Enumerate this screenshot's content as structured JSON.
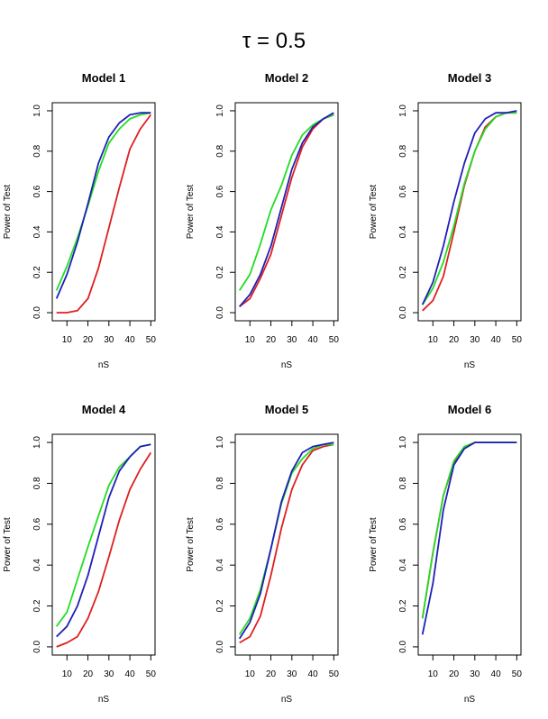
{
  "figure": {
    "title": "τ = 0.5"
  },
  "chart_data": [
    {
      "type": "line",
      "title": "Model 1",
      "xlabel": "nS",
      "ylabel": "Power of Test",
      "xlim": [
        3,
        52
      ],
      "ylim": [
        -0.04,
        1.04
      ],
      "xticks": [
        10,
        20,
        30,
        40,
        50
      ],
      "yticks": [
        0.0,
        0.2,
        0.4,
        0.6,
        0.8,
        1.0
      ],
      "x": [
        5,
        10,
        15,
        20,
        25,
        30,
        35,
        40,
        45,
        50
      ],
      "series": [
        {
          "name": "red",
          "color": "#df1f1f",
          "values": [
            0.0,
            0.0,
            0.01,
            0.07,
            0.22,
            0.42,
            0.62,
            0.81,
            0.91,
            0.98
          ]
        },
        {
          "name": "green",
          "color": "#22dd22",
          "values": [
            0.11,
            0.23,
            0.37,
            0.53,
            0.7,
            0.84,
            0.91,
            0.96,
            0.98,
            0.99
          ]
        },
        {
          "name": "blue",
          "color": "#1f1fb8",
          "values": [
            0.07,
            0.19,
            0.35,
            0.54,
            0.74,
            0.87,
            0.94,
            0.98,
            0.99,
            0.99
          ]
        }
      ]
    },
    {
      "type": "line",
      "title": "Model 2",
      "xlabel": "nS",
      "ylabel": "Power of Test",
      "xlim": [
        3,
        52
      ],
      "ylim": [
        -0.04,
        1.04
      ],
      "xticks": [
        10,
        20,
        30,
        40,
        50
      ],
      "yticks": [
        0.0,
        0.2,
        0.4,
        0.6,
        0.8,
        1.0
      ],
      "x": [
        5,
        10,
        15,
        20,
        25,
        30,
        35,
        40,
        45,
        50
      ],
      "series": [
        {
          "name": "red",
          "color": "#df1f1f",
          "values": [
            0.03,
            0.07,
            0.17,
            0.29,
            0.48,
            0.67,
            0.82,
            0.91,
            0.96,
            0.98
          ]
        },
        {
          "name": "green",
          "color": "#22dd22",
          "values": [
            0.11,
            0.19,
            0.34,
            0.51,
            0.63,
            0.78,
            0.88,
            0.93,
            0.96,
            0.98
          ]
        },
        {
          "name": "blue",
          "color": "#1f1fb8",
          "values": [
            0.03,
            0.09,
            0.19,
            0.33,
            0.52,
            0.71,
            0.84,
            0.92,
            0.96,
            0.99
          ]
        }
      ]
    },
    {
      "type": "line",
      "title": "Model 3",
      "xlabel": "nS",
      "ylabel": "Power of Test",
      "xlim": [
        3,
        52
      ],
      "ylim": [
        -0.04,
        1.04
      ],
      "xticks": [
        10,
        20,
        30,
        40,
        50
      ],
      "yticks": [
        0.0,
        0.2,
        0.4,
        0.6,
        0.8,
        1.0
      ],
      "x": [
        5,
        10,
        15,
        20,
        25,
        30,
        35,
        40,
        45,
        50
      ],
      "series": [
        {
          "name": "red",
          "color": "#df1f1f",
          "values": [
            0.01,
            0.06,
            0.18,
            0.4,
            0.63,
            0.8,
            0.92,
            0.97,
            0.99,
            0.99
          ]
        },
        {
          "name": "green",
          "color": "#22dd22",
          "values": [
            0.04,
            0.12,
            0.25,
            0.43,
            0.64,
            0.8,
            0.91,
            0.97,
            0.99,
            0.99
          ]
        },
        {
          "name": "blue",
          "color": "#1f1fb8",
          "values": [
            0.04,
            0.15,
            0.33,
            0.55,
            0.74,
            0.89,
            0.96,
            0.99,
            0.99,
            1.0
          ]
        }
      ]
    },
    {
      "type": "line",
      "title": "Model 4",
      "xlabel": "nS",
      "ylabel": "Power of Test",
      "xlim": [
        3,
        52
      ],
      "ylim": [
        -0.04,
        1.04
      ],
      "xticks": [
        10,
        20,
        30,
        40,
        50
      ],
      "yticks": [
        0.0,
        0.2,
        0.4,
        0.6,
        0.8,
        1.0
      ],
      "x": [
        5,
        10,
        15,
        20,
        25,
        30,
        35,
        40,
        45,
        50
      ],
      "series": [
        {
          "name": "red",
          "color": "#df1f1f",
          "values": [
            0.0,
            0.02,
            0.05,
            0.14,
            0.27,
            0.44,
            0.62,
            0.77,
            0.87,
            0.95
          ]
        },
        {
          "name": "green",
          "color": "#22dd22",
          "values": [
            0.1,
            0.17,
            0.33,
            0.49,
            0.64,
            0.79,
            0.88,
            0.93,
            0.98,
            0.99
          ]
        },
        {
          "name": "blue",
          "color": "#1f1fb8",
          "values": [
            0.05,
            0.1,
            0.2,
            0.35,
            0.54,
            0.73,
            0.86,
            0.93,
            0.98,
            0.99
          ]
        }
      ]
    },
    {
      "type": "line",
      "title": "Model 5",
      "xlabel": "nS",
      "ylabel": "Power of Test",
      "xlim": [
        3,
        52
      ],
      "ylim": [
        -0.04,
        1.04
      ],
      "xticks": [
        10,
        20,
        30,
        40,
        50
      ],
      "yticks": [
        0.0,
        0.2,
        0.4,
        0.6,
        0.8,
        1.0
      ],
      "x": [
        5,
        10,
        15,
        20,
        25,
        30,
        35,
        40,
        45,
        50
      ],
      "series": [
        {
          "name": "red",
          "color": "#df1f1f",
          "values": [
            0.02,
            0.05,
            0.15,
            0.35,
            0.58,
            0.77,
            0.89,
            0.96,
            0.98,
            0.99
          ]
        },
        {
          "name": "green",
          "color": "#22dd22",
          "values": [
            0.06,
            0.14,
            0.28,
            0.48,
            0.7,
            0.85,
            0.92,
            0.97,
            0.99,
            0.99
          ]
        },
        {
          "name": "blue",
          "color": "#1f1fb8",
          "values": [
            0.04,
            0.12,
            0.26,
            0.48,
            0.71,
            0.86,
            0.95,
            0.98,
            0.99,
            1.0
          ]
        }
      ]
    },
    {
      "type": "line",
      "title": "Model 6",
      "xlabel": "nS",
      "ylabel": "Power of Test",
      "xlim": [
        3,
        52
      ],
      "ylim": [
        -0.04,
        1.04
      ],
      "xticks": [
        10,
        20,
        30,
        40,
        50
      ],
      "yticks": [
        0.0,
        0.2,
        0.4,
        0.6,
        0.8,
        1.0
      ],
      "x": [
        5,
        10,
        15,
        20,
        25,
        30,
        35,
        40,
        45,
        50
      ],
      "series": [
        {
          "name": "red",
          "color": "#df1f1f",
          "values": [
            0.14,
            0.46,
            0.74,
            0.9,
            0.97,
            1.0,
            1.0,
            1.0,
            1.0,
            1.0
          ]
        },
        {
          "name": "green",
          "color": "#22dd22",
          "values": [
            0.14,
            0.46,
            0.74,
            0.91,
            0.98,
            1.0,
            1.0,
            1.0,
            1.0,
            1.0
          ]
        },
        {
          "name": "blue",
          "color": "#1f1fb8",
          "values": [
            0.06,
            0.31,
            0.67,
            0.89,
            0.97,
            1.0,
            1.0,
            1.0,
            1.0,
            1.0
          ]
        }
      ]
    }
  ]
}
